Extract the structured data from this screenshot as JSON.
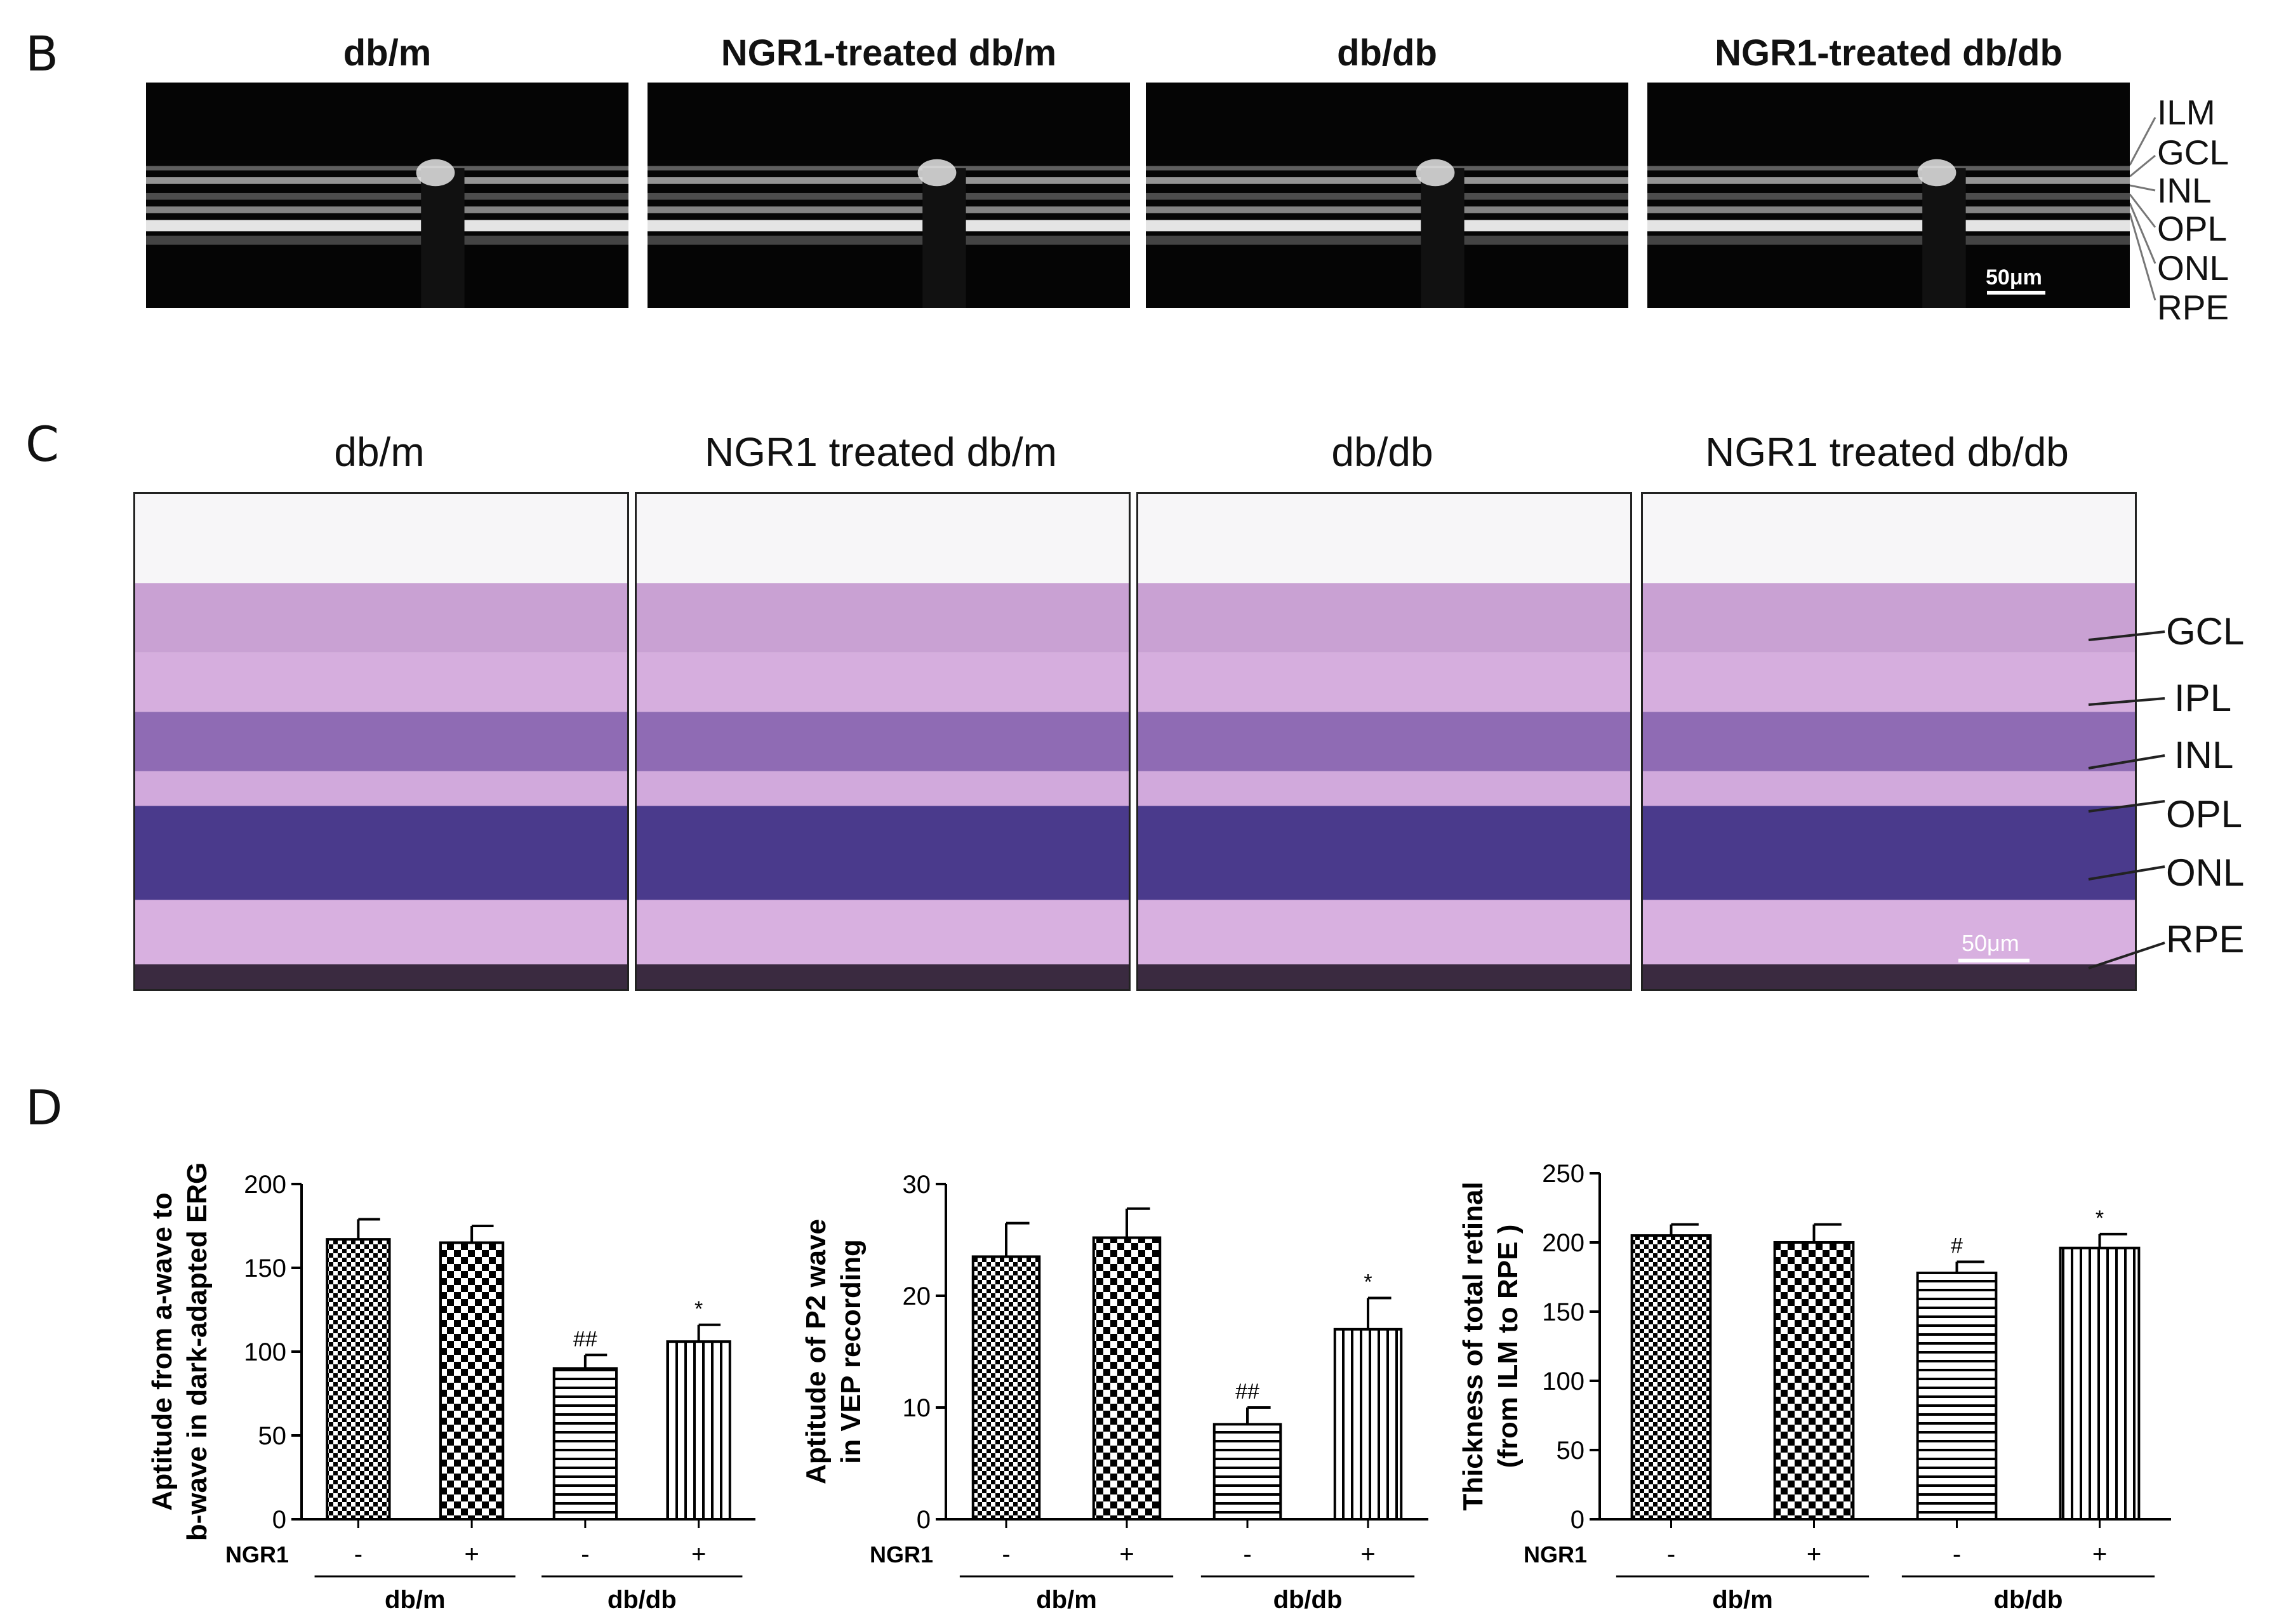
{
  "panel_b": {
    "letter": "B",
    "titles": [
      "db/m",
      "NGR1-treated db/m",
      "db/db",
      "NGR1-treated db/db"
    ],
    "layer_labels": [
      "ILM",
      "GCL",
      "INL",
      "OPL",
      "ONL",
      "RPE"
    ],
    "scale_bar": "50μm"
  },
  "panel_c": {
    "letter": "C",
    "titles": [
      "db/m",
      "NGR1 treated db/m",
      "db/db",
      "NGR1 treated db/db"
    ],
    "layer_labels": [
      "GCL",
      "IPL",
      "INL",
      "OPL",
      "ONL",
      "RPE"
    ],
    "scale_bar": "50μm"
  },
  "panel_d": {
    "letter": "D",
    "row_label": "NGR1",
    "signs": [
      "-",
      "+",
      "-",
      "+"
    ],
    "groups": [
      "db/m",
      "db/db"
    ]
  },
  "chart_data": [
    {
      "type": "bar",
      "ylabel_line1": "Aptitude from a-wave to",
      "ylabel_line2": "b-wave in dark-adapted ERG",
      "ylim": [
        0,
        200
      ],
      "yticks": [
        0,
        50,
        100,
        150,
        200
      ],
      "values": [
        167,
        165,
        90,
        106
      ],
      "errors": [
        12,
        10,
        8,
        10
      ],
      "annotations": [
        "",
        "",
        "##",
        "*"
      ],
      "patterns": [
        "checker-fine",
        "checker",
        "horizontal",
        "vertical"
      ]
    },
    {
      "type": "bar",
      "ylabel_line1": "Aptitude of P2 wave",
      "ylabel_line2": "in VEP recording",
      "ylim": [
        0,
        30
      ],
      "yticks": [
        0,
        10,
        20,
        30
      ],
      "values": [
        23.5,
        25.2,
        8.5,
        17
      ],
      "errors": [
        3,
        2.6,
        1.5,
        2.8
      ],
      "annotations": [
        "",
        "",
        "##",
        "*"
      ],
      "patterns": [
        "checker-fine",
        "checker",
        "horizontal",
        "vertical"
      ]
    },
    {
      "type": "bar",
      "ylabel_line1": "Thickness of total retinal",
      "ylabel_line2": "(from ILM to RPE  )",
      "ylim": [
        0,
        250
      ],
      "yticks": [
        0,
        50,
        100,
        150,
        200,
        250
      ],
      "values": [
        205,
        200,
        178,
        196
      ],
      "errors": [
        8,
        13,
        8,
        10
      ],
      "annotations": [
        "",
        "",
        "#",
        "*"
      ],
      "patterns": [
        "checker-fine",
        "checker",
        "horizontal",
        "vertical"
      ]
    }
  ],
  "colors": {
    "bar_ink": "#000000",
    "he_pink": "#d9a9de",
    "he_nuclei": "#3a2a78"
  }
}
